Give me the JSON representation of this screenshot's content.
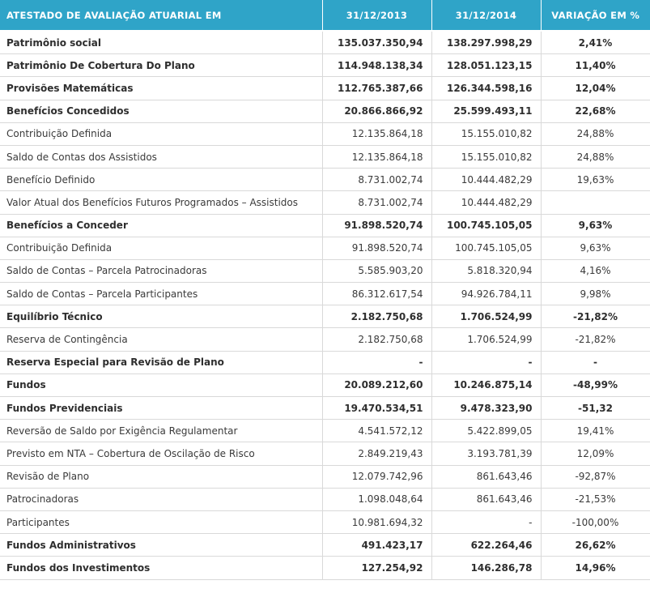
{
  "table": {
    "headers": [
      "ATESTADO DE AVALIAÇÃO ATUARIAL EM",
      "31/12/2013",
      "31/12/2014",
      "VARIAÇÃO EM %"
    ],
    "rows": [
      {
        "label": "Patrimônio social",
        "v2013": "135.037.350,94",
        "v2014": "138.297.998,29",
        "var": "2,41%",
        "bold": true
      },
      {
        "label": "Patrimônio De Cobertura Do Plano",
        "v2013": "114.948.138,34",
        "v2014": "128.051.123,15",
        "var": "11,40%",
        "bold": true
      },
      {
        "label": "Provisões Matemáticas",
        "v2013": "112.765.387,66",
        "v2014": "126.344.598,16",
        "var": "12,04%",
        "bold": true
      },
      {
        "label": "Benefícios Concedidos",
        "v2013": "20.866.866,92",
        "v2014": "25.599.493,11",
        "var": "22,68%",
        "bold": true
      },
      {
        "label": "Contribuição Definida",
        "v2013": "12.135.864,18",
        "v2014": "15.155.010,82",
        "var": "24,88%",
        "bold": false
      },
      {
        "label": "Saldo de Contas dos Assistidos",
        "v2013": "12.135.864,18",
        "v2014": "15.155.010,82",
        "var": "24,88%",
        "bold": false
      },
      {
        "label": "Benefício Definido",
        "v2013": "8.731.002,74",
        "v2014": "10.444.482,29",
        "var": "19,63%",
        "bold": false
      },
      {
        "label": "Valor Atual dos Benefícios Futuros Programados – Assistidos",
        "v2013": "8.731.002,74",
        "v2014": "10.444.482,29",
        "var": "",
        "bold": false
      },
      {
        "label": "Benefícios a Conceder",
        "v2013": "91.898.520,74",
        "v2014": "100.745.105,05",
        "var": "9,63%",
        "bold": true
      },
      {
        "label": "Contribuição Definida",
        "v2013": "91.898.520,74",
        "v2014": "100.745.105,05",
        "var": "9,63%",
        "bold": false
      },
      {
        "label": "Saldo de Contas – Parcela Patrocinadoras",
        "v2013": "5.585.903,20",
        "v2014": "5.818.320,94",
        "var": "4,16%",
        "bold": false
      },
      {
        "label": "Saldo de Contas – Parcela Participantes",
        "v2013": "86.312.617,54",
        "v2014": "94.926.784,11",
        "var": "9,98%",
        "bold": false
      },
      {
        "label": "Equilíbrio Técnico",
        "v2013": "2.182.750,68",
        "v2014": "1.706.524,99",
        "var": "-21,82%",
        "bold": true
      },
      {
        "label": "Reserva de Contingência",
        "v2013": "2.182.750,68",
        "v2014": "1.706.524,99",
        "var": "-21,82%",
        "bold": false
      },
      {
        "label": "Reserva Especial para Revisão de Plano",
        "v2013": "-",
        "v2014": "-",
        "var": "-",
        "bold": true
      },
      {
        "label": "Fundos",
        "v2013": "20.089.212,60",
        "v2014": "10.246.875,14",
        "var": "-48,99%",
        "bold": true
      },
      {
        "label": "Fundos Previdenciais",
        "v2013": "19.470.534,51",
        "v2014": "9.478.323,90",
        "var": "-51,32",
        "bold": true
      },
      {
        "label": "Reversão de Saldo por Exigência Regulamentar",
        "v2013": "4.541.572,12",
        "v2014": "5.422.899,05",
        "var": "19,41%",
        "bold": false
      },
      {
        "label": "Previsto em NTA – Cobertura de Oscilação de Risco",
        "v2013": "2.849.219,43",
        "v2014": "3.193.781,39",
        "var": "12,09%",
        "bold": false
      },
      {
        "label": "Revisão de Plano",
        "v2013": "12.079.742,96",
        "v2014": "861.643,46",
        "var": "-92,87%",
        "bold": false
      },
      {
        "label": "Patrocinadoras",
        "v2013": "1.098.048,64",
        "v2014": "861.643,46",
        "var": "-21,53%",
        "bold": false
      },
      {
        "label": "Participantes",
        "v2013": "10.981.694,32",
        "v2014": "-",
        "var": "-100,00%",
        "bold": false
      },
      {
        "label": "Fundos Administrativos",
        "v2013": "491.423,17",
        "v2014": "622.264,46",
        "var": "26,62%",
        "bold": true
      },
      {
        "label": "Fundos dos Investimentos",
        "v2013": "127.254,92",
        "v2014": "146.286,78",
        "var": "14,96%",
        "bold": true
      }
    ]
  }
}
